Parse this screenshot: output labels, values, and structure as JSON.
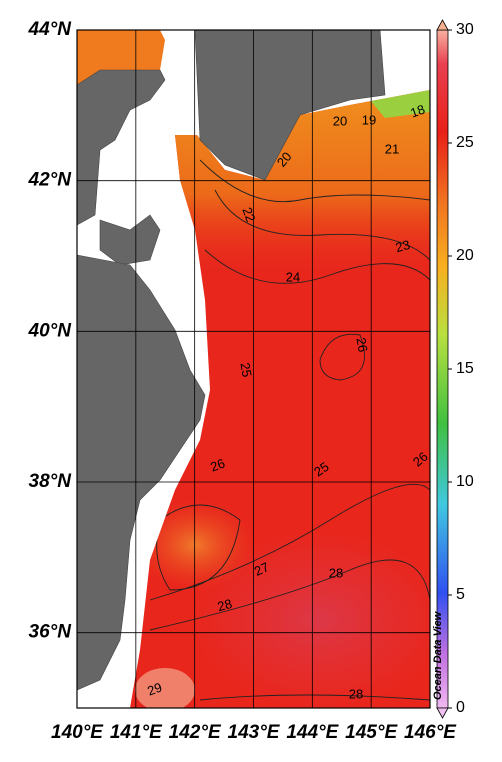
{
  "map": {
    "lon_ticks": [
      {
        "value": 140,
        "label": "140°E"
      },
      {
        "value": 141,
        "label": "141°E"
      },
      {
        "value": 142,
        "label": "142°E"
      },
      {
        "value": 143,
        "label": "143°E"
      },
      {
        "value": 144,
        "label": "144°E"
      },
      {
        "value": 145,
        "label": "145°E"
      },
      {
        "value": 146,
        "label": "146°E"
      }
    ],
    "lat_ticks": [
      {
        "value": 44,
        "label": "44°N"
      },
      {
        "value": 42,
        "label": "42°N"
      },
      {
        "value": 40,
        "label": "40°N"
      },
      {
        "value": 38,
        "label": "38°N"
      },
      {
        "value": 36,
        "label": "36°N"
      }
    ],
    "lon_range": [
      140,
      146
    ],
    "lat_range": [
      35,
      44
    ],
    "colorbar": {
      "range": [
        0,
        30
      ],
      "ticks": [
        0,
        5,
        10,
        15,
        20,
        25,
        30
      ]
    },
    "contour_labels": [
      20,
      19,
      18,
      20,
      21,
      22,
      23,
      24,
      26,
      25,
      26,
      25,
      26,
      27,
      28,
      28,
      28,
      29
    ],
    "credit": "Ocean Data View"
  }
}
